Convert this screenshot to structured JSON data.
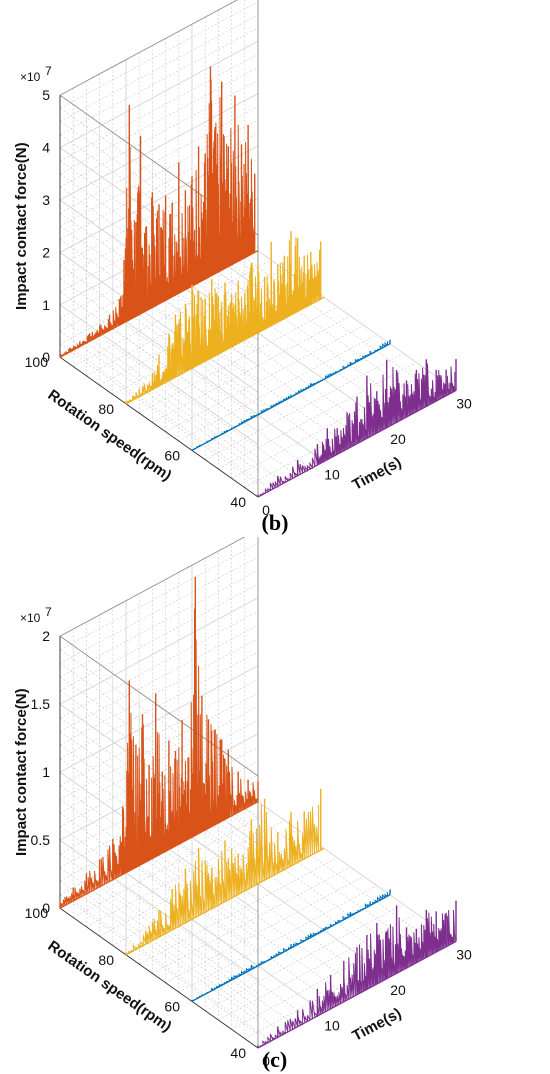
{
  "chart_data": [
    {
      "type": "line",
      "panel_label": "(b)",
      "zlabel": "Impact contact force(N)",
      "ylabel": "Rotation speed(rpm)",
      "xlabel": "Time(s)",
      "z_exponent_label": "×10",
      "z_exponent": "7",
      "zlim": [
        0,
        5
      ],
      "z_ticks": [
        "0",
        "1",
        "2",
        "3",
        "4",
        "5"
      ],
      "ylim": [
        40,
        100
      ],
      "y_ticks": [
        "40",
        "60",
        "80",
        "100"
      ],
      "xlim": [
        0,
        30
      ],
      "x_ticks": [
        "0",
        "10",
        "20",
        "30"
      ],
      "grid": true,
      "series": [
        {
          "rpm": 100,
          "color": "#D95319",
          "x": [
            0,
            1.5,
            3,
            4.5,
            6,
            7.5,
            9,
            9.7,
            10.5,
            11.5,
            12.2,
            13,
            14,
            15,
            16,
            17,
            18,
            19,
            20,
            21,
            22,
            22.8,
            23.5,
            24.5,
            25.5,
            26.5,
            27.5,
            28.5,
            29.5
          ],
          "values": [
            0.05,
            0.08,
            0.1,
            0.15,
            0.2,
            0.3,
            0.5,
            1.2,
            4.1,
            1.8,
            3.4,
            1.6,
            2.2,
            1.9,
            2.0,
            1.8,
            2.5,
            1.9,
            2.1,
            2.6,
            2.4,
            4.0,
            2.8,
            3.6,
            2.3,
            3.2,
            2.2,
            2.5,
            1.5
          ]
        },
        {
          "rpm": 80,
          "color": "#EDB120",
          "x": [
            0,
            2,
            4,
            5,
            6.5,
            7.5,
            9,
            10,
            11,
            12,
            13,
            14,
            15,
            16,
            17,
            18,
            19,
            20,
            21,
            22,
            23,
            24,
            25,
            26,
            27,
            28,
            29.5
          ],
          "values": [
            0.05,
            0.15,
            0.3,
            0.6,
            0.9,
            1.2,
            1.3,
            1.6,
            1.4,
            1.2,
            1.5,
            1.1,
            1.3,
            1.0,
            1.2,
            0.9,
            1.4,
            1.3,
            1.0,
            1.6,
            1.1,
            1.2,
            1.6,
            1.4,
            1.0,
            1.0,
            1.1
          ]
        },
        {
          "rpm": 60,
          "color": "#0072BD",
          "x": [
            0,
            3,
            6,
            9,
            12,
            15,
            18,
            21,
            24,
            27,
            30
          ],
          "values": [
            0.02,
            0.03,
            0.03,
            0.05,
            0.04,
            0.05,
            0.06,
            0.05,
            0.06,
            0.07,
            0.08
          ]
        },
        {
          "rpm": 40,
          "color": "#7E2F8E",
          "x": [
            0,
            3,
            6,
            9,
            10.5,
            12,
            13.5,
            15,
            16.5,
            18,
            19.5,
            21,
            22.5,
            24,
            25.5,
            27,
            28.5,
            30
          ],
          "values": [
            0.05,
            0.2,
            0.3,
            0.4,
            0.6,
            0.5,
            0.7,
            0.9,
            1.2,
            0.8,
            1.3,
            1.0,
            0.7,
            0.8,
            0.9,
            0.6,
            0.5,
            0.6
          ]
        }
      ]
    },
    {
      "type": "line",
      "panel_label": "(c)",
      "zlabel": "Impact contact force(N)",
      "ylabel": "Rotation speed(rpm)",
      "xlabel": "Time(s)",
      "z_exponent_label": "×10",
      "z_exponent": "7",
      "zlim": [
        0,
        2
      ],
      "z_ticks": [
        "0",
        "0.5",
        "1",
        "1.5",
        "2"
      ],
      "ylim": [
        40,
        100
      ],
      "y_ticks": [
        "40",
        "60",
        "80",
        "100"
      ],
      "xlim": [
        0,
        30
      ],
      "x_ticks": [
        "0",
        "10",
        "20",
        "30"
      ],
      "grid": true,
      "series": [
        {
          "rpm": 100,
          "color": "#D95319",
          "x": [
            0,
            2,
            4,
            6,
            8,
            9.5,
            10.5,
            11.5,
            12.5,
            13.5,
            14.5,
            15.5,
            16.5,
            17.5,
            18.5,
            19.5,
            20.5,
            21.5,
            22.5,
            23.5,
            24.5,
            25.5,
            27,
            28.5,
            30
          ],
          "values": [
            0.05,
            0.1,
            0.15,
            0.2,
            0.3,
            0.5,
            1.4,
            0.9,
            1.1,
            0.7,
            1.2,
            0.6,
            0.8,
            0.7,
            0.9,
            0.6,
            1.9,
            1.0,
            0.8,
            0.7,
            0.6,
            0.5,
            0.3,
            0.2,
            0.15
          ]
        },
        {
          "rpm": 80,
          "color": "#EDB120",
          "x": [
            0,
            3,
            5,
            7,
            9,
            11,
            13,
            15,
            17,
            19,
            21,
            23,
            25,
            27,
            29.5
          ],
          "values": [
            0.02,
            0.1,
            0.2,
            0.3,
            0.4,
            0.5,
            0.3,
            0.45,
            0.3,
            0.5,
            0.6,
            0.3,
            0.4,
            0.35,
            0.45
          ]
        },
        {
          "rpm": 60,
          "color": "#0072BD",
          "x": [
            0,
            3,
            6,
            9,
            12,
            15,
            18,
            21,
            24,
            27,
            30
          ],
          "values": [
            0.01,
            0.02,
            0.02,
            0.03,
            0.02,
            0.03,
            0.03,
            0.02,
            0.03,
            0.03,
            0.04
          ]
        },
        {
          "rpm": 40,
          "color": "#7E2F8E",
          "x": [
            0,
            3,
            6,
            9,
            11,
            13,
            15,
            16.5,
            18,
            19.5,
            21,
            22.5,
            24,
            25.5,
            27,
            28.5,
            30
          ],
          "values": [
            0.02,
            0.08,
            0.12,
            0.2,
            0.25,
            0.3,
            0.35,
            0.4,
            0.45,
            0.35,
            0.5,
            0.3,
            0.25,
            0.35,
            0.3,
            0.25,
            0.3
          ]
        }
      ]
    }
  ]
}
